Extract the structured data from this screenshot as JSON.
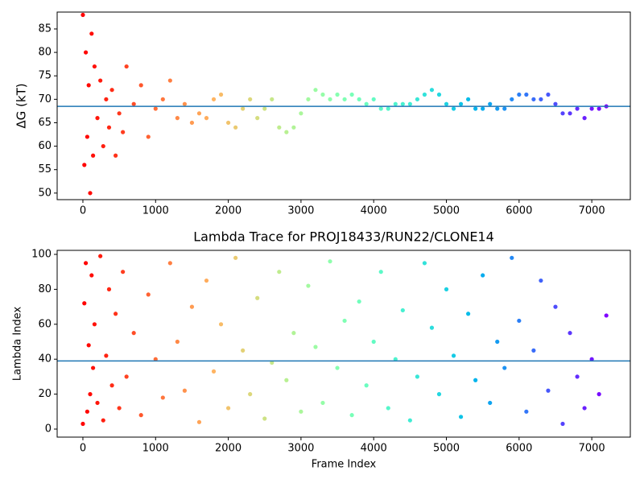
{
  "chart_data": [
    {
      "type": "scatter",
      "ylabel": "ΔG (kT)",
      "x": [
        0,
        20,
        40,
        60,
        80,
        100,
        120,
        140,
        160,
        200,
        240,
        280,
        320,
        360,
        400,
        450,
        500,
        550,
        600,
        700,
        800,
        900,
        1000,
        1100,
        1200,
        1300,
        1400,
        1500,
        1600,
        1700,
        1800,
        1900,
        2000,
        2100,
        2200,
        2300,
        2400,
        2500,
        2600,
        2700,
        2800,
        2900,
        3000,
        3100,
        3200,
        3300,
        3400,
        3500,
        3600,
        3700,
        3800,
        3900,
        4000,
        4100,
        4200,
        4300,
        4400,
        4500,
        4600,
        4700,
        4800,
        4900,
        5000,
        5100,
        5200,
        5300,
        5400,
        5500,
        5600,
        5700,
        5800,
        5900,
        6000,
        6100,
        6200,
        6300,
        6400,
        6500,
        6600,
        6700,
        6800,
        6900,
        7000,
        7100,
        7200
      ],
      "values": [
        88,
        56,
        80,
        62,
        73,
        50,
        84,
        58,
        77,
        66,
        74,
        60,
        70,
        64,
        72,
        58,
        67,
        63,
        77,
        69,
        73,
        62,
        68,
        70,
        74,
        66,
        69,
        65,
        67,
        66,
        70,
        71,
        65,
        64,
        68,
        70,
        66,
        68,
        70,
        64,
        63,
        64,
        67,
        70,
        72,
        71,
        70,
        71,
        70,
        71,
        70,
        69,
        70,
        68,
        68,
        69,
        69,
        69,
        70,
        71,
        72,
        71,
        69,
        68,
        69,
        70,
        68,
        68,
        69,
        68,
        68,
        70,
        71,
        71,
        70,
        70,
        71,
        69,
        67,
        67,
        68,
        66,
        68,
        68,
        68.5
      ],
      "colormap": "rainbow",
      "colormap_reversed": true,
      "hline": 68.5,
      "hline_color": "#1f77b4",
      "xlim": [
        -354,
        7530
      ],
      "ylim": [
        48.6,
        88.6
      ],
      "xticks": [
        0,
        1000,
        2000,
        3000,
        4000,
        5000,
        6000,
        7000
      ],
      "yticks": [
        50,
        55,
        60,
        65,
        70,
        75,
        80,
        85
      ]
    },
    {
      "type": "scatter",
      "title": "Lambda Trace for PROJ18433/RUN22/CLONE14",
      "xlabel": "Frame Index",
      "ylabel": "Lambda Index",
      "x": [
        0,
        20,
        40,
        60,
        80,
        100,
        120,
        140,
        160,
        200,
        240,
        280,
        320,
        360,
        400,
        450,
        500,
        550,
        600,
        700,
        800,
        900,
        1000,
        1100,
        1200,
        1300,
        1400,
        1500,
        1600,
        1700,
        1800,
        1900,
        2000,
        2100,
        2200,
        2300,
        2400,
        2500,
        2600,
        2700,
        2800,
        2900,
        3000,
        3100,
        3200,
        3300,
        3400,
        3500,
        3600,
        3700,
        3800,
        3900,
        4000,
        4100,
        4200,
        4300,
        4400,
        4500,
        4600,
        4700,
        4800,
        4900,
        5000,
        5100,
        5200,
        5300,
        5400,
        5500,
        5600,
        5700,
        5800,
        5900,
        6000,
        6100,
        6200,
        6300,
        6400,
        6500,
        6600,
        6700,
        6800,
        6900,
        7000,
        7100,
        7200
      ],
      "values": [
        3,
        72,
        95,
        10,
        48,
        20,
        88,
        35,
        60,
        15,
        99,
        5,
        42,
        80,
        25,
        66,
        12,
        90,
        30,
        55,
        8,
        77,
        40,
        18,
        95,
        50,
        22,
        70,
        4,
        85,
        33,
        60,
        12,
        98,
        45,
        20,
        75,
        6,
        38,
        90,
        28,
        55,
        10,
        82,
        47,
        15,
        96,
        35,
        62,
        8,
        73,
        25,
        50,
        90,
        12,
        40,
        68,
        5,
        30,
        95,
        58,
        20,
        80,
        42,
        7,
        66,
        28,
        88,
        15,
        50,
        35,
        98,
        62,
        10,
        45,
        85,
        22,
        70,
        3,
        55,
        30,
        12,
        40,
        20,
        65
      ],
      "colormap": "rainbow",
      "colormap_reversed": true,
      "hline": 39,
      "hline_color": "#1f77b4",
      "xlim": [
        -354,
        7530
      ],
      "ylim": [
        -4.6,
        102.3
      ],
      "xticks": [
        0,
        1000,
        2000,
        3000,
        4000,
        5000,
        6000,
        7000
      ],
      "yticks": [
        0,
        20,
        40,
        60,
        80,
        100
      ]
    }
  ]
}
